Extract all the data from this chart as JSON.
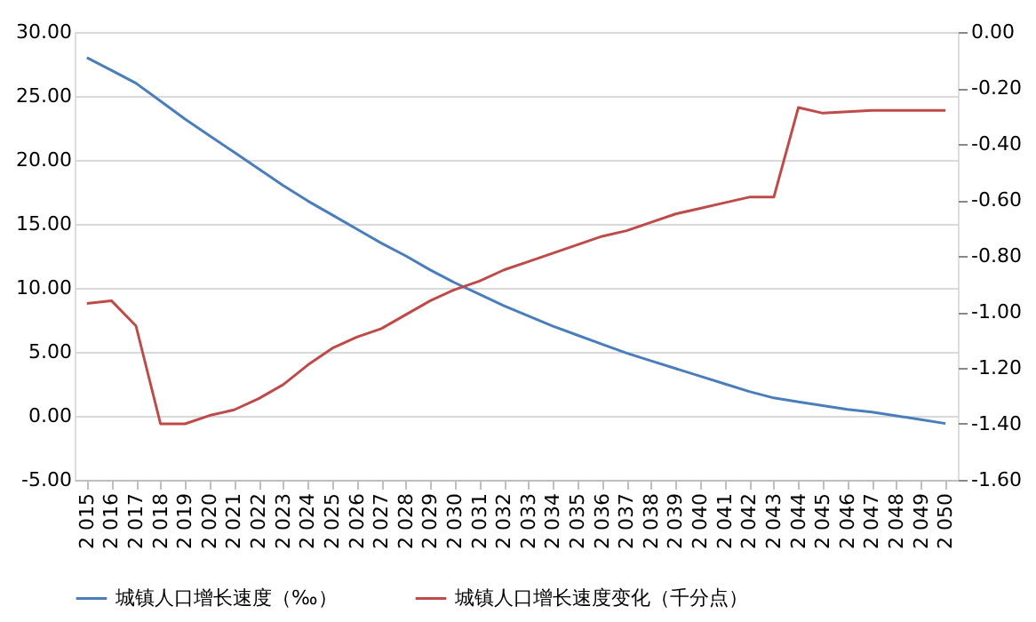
{
  "chart_data": {
    "type": "line",
    "categories": [
      "2 015",
      "2 016",
      "2 017",
      "2 018",
      "2 019",
      "2 020",
      "2 021",
      "2 022",
      "2 023",
      "2 024",
      "2 025",
      "2 026",
      "2 027",
      "2 028",
      "2 029",
      "2 030",
      "2 031",
      "2 032",
      "2 033",
      "2 034",
      "2 035",
      "2 036",
      "2 037",
      "2 038",
      "2 039",
      "2 040",
      "2 041",
      "2 042",
      "2 043",
      "2 044",
      "2 045",
      "2 046",
      "2 047",
      "2 048",
      "2 049",
      "2 050"
    ],
    "series": [
      {
        "name": "城镇人口增长速度（‰）",
        "color": "#4a7ebb",
        "values": [
          28.0,
          27.0,
          26.0,
          24.6,
          23.2,
          21.9,
          20.6,
          19.3,
          18.0,
          16.8,
          15.7,
          14.6,
          13.5,
          12.5,
          11.4,
          10.4,
          9.5,
          8.6,
          7.8,
          7.0,
          6.3,
          5.6,
          4.9,
          4.3,
          3.7,
          3.1,
          2.5,
          1.9,
          1.4,
          1.1,
          0.8,
          0.5,
          0.3,
          0.0,
          -0.3,
          -0.6
        ]
      },
      {
        "name": "城镇人口增长速度变化（千分点）",
        "color": "#be4b48",
        "axis": "y2",
        "values": [
          -0.97,
          -0.96,
          -1.05,
          -1.4,
          -1.4,
          -1.37,
          -1.35,
          -1.31,
          -1.26,
          -1.19,
          -1.13,
          -1.09,
          -1.06,
          -1.01,
          -0.96,
          -0.92,
          -0.89,
          -0.85,
          -0.82,
          -0.79,
          -0.76,
          -0.73,
          -0.71,
          -0.68,
          -0.65,
          -0.63,
          -0.61,
          -0.59,
          -0.59,
          -0.27,
          -0.29,
          -0.285,
          -0.28,
          -0.28,
          -0.28,
          -0.28
        ]
      }
    ],
    "ylim": [
      -5,
      30
    ],
    "yticks": [
      {
        "value": -5,
        "label": "-5.00"
      },
      {
        "value": 0,
        "label": "0.00"
      },
      {
        "value": 5,
        "label": "5.00"
      },
      {
        "value": 10,
        "label": "10.00"
      },
      {
        "value": 15,
        "label": "15.00"
      },
      {
        "value": 20,
        "label": "20.00"
      },
      {
        "value": 25,
        "label": "25.00"
      },
      {
        "value": 30,
        "label": "30.00"
      }
    ],
    "y2lim": [
      -1.6,
      0
    ],
    "y2ticks": [
      {
        "value": -1.6,
        "label": "-1.60"
      },
      {
        "value": -1.4,
        "label": "-1.40"
      },
      {
        "value": -1.2,
        "label": "-1.20"
      },
      {
        "value": -1.0,
        "label": "-1.00"
      },
      {
        "value": -0.8,
        "label": "-0.80"
      },
      {
        "value": -0.6,
        "label": "-0.60"
      },
      {
        "value": -0.4,
        "label": "-0.40"
      },
      {
        "value": -0.2,
        "label": "-0.20"
      },
      {
        "value": 0,
        "label": "0.00"
      }
    ],
    "grid": "y",
    "legend": "bottom"
  }
}
